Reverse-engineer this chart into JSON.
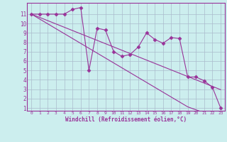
{
  "x_data": [
    0,
    1,
    2,
    3,
    4,
    5,
    6,
    7,
    8,
    9,
    10,
    11,
    12,
    13,
    14,
    15,
    16,
    17,
    18,
    19,
    20,
    21,
    22,
    23
  ],
  "y_jagged": [
    11,
    11,
    11,
    11,
    11,
    11.5,
    11.7,
    5.0,
    9.5,
    9.3,
    7.0,
    6.5,
    6.7,
    7.5,
    9.0,
    8.3,
    7.9,
    8.5,
    8.4,
    4.3,
    4.3,
    3.9,
    3.2,
    1.0
  ],
  "y_trend1": [
    11,
    10.65,
    10.3,
    9.95,
    9.6,
    9.25,
    8.9,
    8.55,
    8.2,
    7.85,
    7.5,
    7.15,
    6.8,
    6.45,
    6.1,
    5.75,
    5.4,
    5.05,
    4.7,
    4.35,
    4.0,
    3.65,
    3.3,
    2.95
  ],
  "y_trend2": [
    11,
    10.48,
    9.96,
    9.44,
    8.92,
    8.4,
    7.88,
    7.36,
    6.84,
    6.32,
    5.8,
    5.28,
    4.76,
    4.24,
    3.72,
    3.2,
    2.68,
    2.16,
    1.64,
    1.12,
    0.8,
    0.5,
    0.2,
    0.0
  ],
  "line_color": "#993399",
  "bg_color": "#cceeee",
  "grid_color": "#aabbcc",
  "xlabel": "Windchill (Refroidissement éolien,°C)",
  "ylim": [
    0.7,
    12.2
  ],
  "xlim": [
    -0.5,
    23.5
  ],
  "marker": "D",
  "markersize": 2.5,
  "linewidth": 0.8
}
